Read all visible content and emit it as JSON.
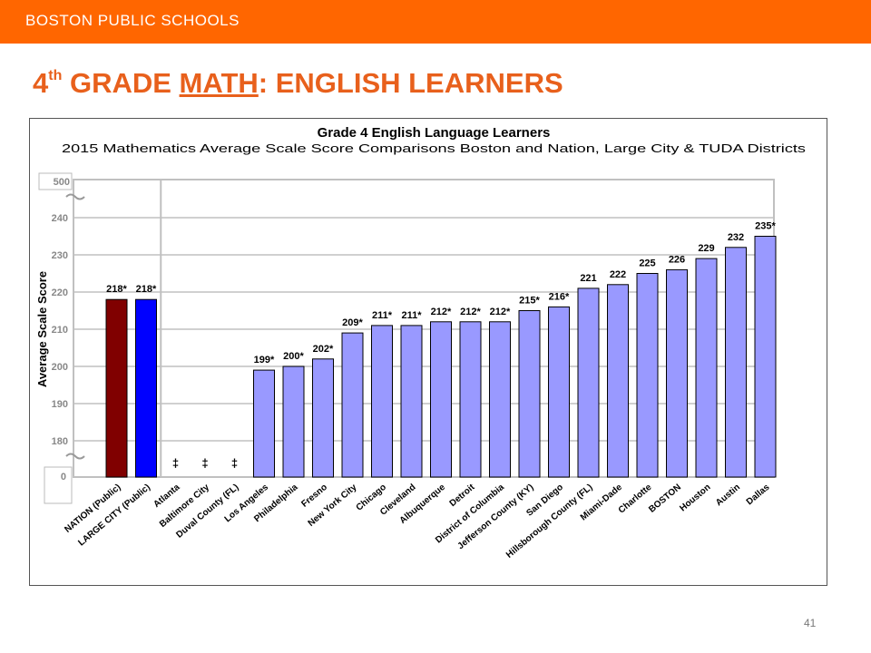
{
  "header": {
    "org": "BOSTON PUBLIC SCHOOLS",
    "title_num": "4",
    "title_sup": "th",
    "title_a": " GRADE ",
    "title_b": "MATH",
    "title_c": ": ENGLISH LEARNERS"
  },
  "page_number": "41",
  "chart_data": {
    "type": "bar",
    "title": "Grade 4 English Language Learners",
    "subtitle": "2015 Mathematics Average Scale Score Comparisons Boston and Nation, Large City & TUDA Districts",
    "ylabel": "Average Scale Score",
    "ylim": [
      180,
      240
    ],
    "yticks": [
      180,
      190,
      200,
      210,
      220,
      230,
      240
    ],
    "axis_break_labels": [
      "500",
      "0"
    ],
    "categories": [
      "NATION (Public)",
      "LARGE CITY (Public)",
      "Atlanta",
      "Baltimore City",
      "Duval County (FL)",
      "Los Angeles",
      "Philadelphia",
      "Fresno",
      "New York City",
      "Chicago",
      "Cleveland",
      "Albuquerque",
      "Detroit",
      "District of Columbia",
      "Jefferson County (KY)",
      "San Diego",
      "Hillsborough County (FL)",
      "Miami-Dade",
      "Charlotte",
      "BOSTON",
      "Houston",
      "Austin",
      "Dallas"
    ],
    "values": [
      218,
      218,
      null,
      null,
      null,
      199,
      200,
      202,
      209,
      211,
      211,
      212,
      212,
      212,
      215,
      216,
      221,
      222,
      225,
      226,
      229,
      232,
      235
    ],
    "value_labels": [
      "218*",
      "218*",
      "‡",
      "‡",
      "‡",
      "199*",
      "200*",
      "202*",
      "209*",
      "211*",
      "211*",
      "212*",
      "212*",
      "212*",
      "215*",
      "216*",
      "221",
      "222",
      "225",
      "226",
      "229",
      "232",
      "235*"
    ],
    "colors": {
      "nation": "#800000",
      "large_city": "#0000ff",
      "district": "#9999ff",
      "outline": "#000000",
      "gridline": "#c0c0c0",
      "plot_border": "#c0c0c0"
    },
    "grid": true
  }
}
